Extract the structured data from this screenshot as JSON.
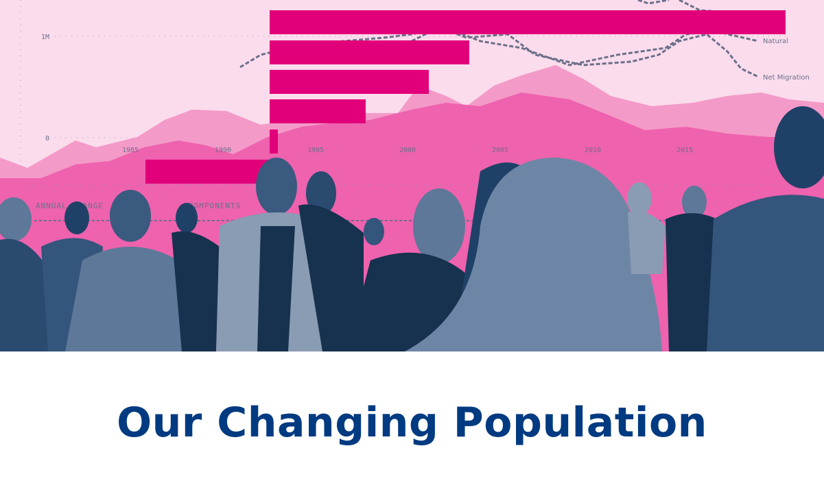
{
  "title": "Our Changing Population",
  "colors": {
    "background": "#fbdcec",
    "area_light": "#f49ac8",
    "area_dark": "#ee62ae",
    "bars": "#e2007a",
    "lines": "#6b6f8a",
    "photo_tint": "#1f4168",
    "title": "#003a80"
  },
  "graphic": {
    "y_ticks": [
      "1M",
      "0"
    ],
    "x_ticks": [
      "1985",
      "1990",
      "1995",
      "2000",
      "2005",
      "2010",
      "2015"
    ],
    "line_labels": [
      "Natural",
      "Net Migration"
    ],
    "captions": [
      "ANNUAL CHANGE",
      "COMPONENTS"
    ]
  }
}
